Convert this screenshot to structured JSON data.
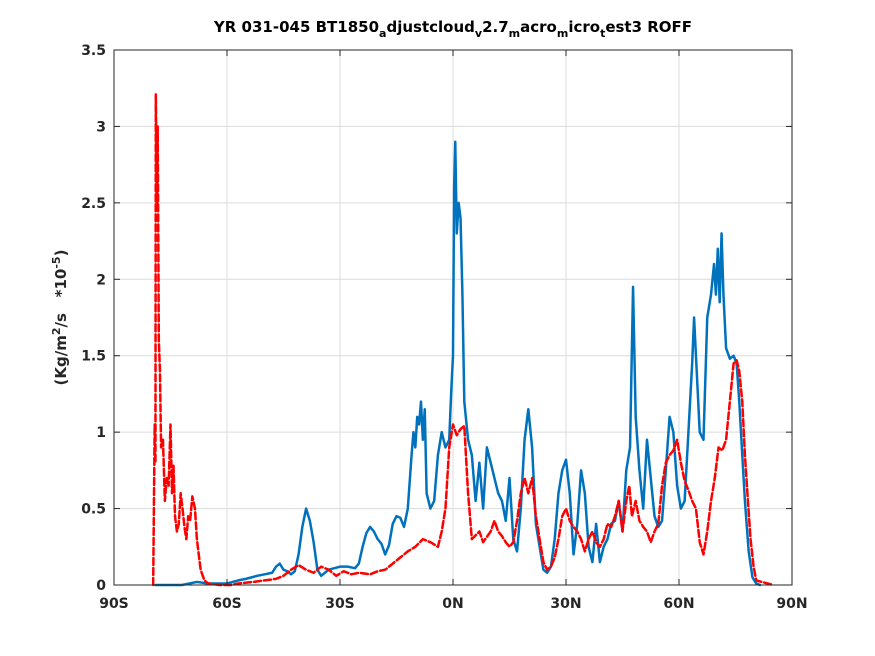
{
  "chart_data": {
    "type": "line",
    "title": {
      "segments": [
        {
          "text": "YR 031-045 BT1850",
          "sub": false
        },
        {
          "text": "a",
          "sub": true
        },
        {
          "text": "djustcloud",
          "sub": false
        },
        {
          "text": "v",
          "sub": true
        },
        {
          "text": "2.7",
          "sub": false
        },
        {
          "text": "m",
          "sub": true
        },
        {
          "text": "acro",
          "sub": false
        },
        {
          "text": "m",
          "sub": true
        },
        {
          "text": "icro",
          "sub": false
        },
        {
          "text": "t",
          "sub": true
        },
        {
          "text": "est3 ROFF",
          "sub": false
        }
      ]
    },
    "ylabel": {
      "segments": [
        {
          "text": "(Kg/m",
          "sup": false
        },
        {
          "text": "2",
          "sup": true
        },
        {
          "text": "/s   *10",
          "sup": false
        },
        {
          "text": "-5",
          "sup": true
        },
        {
          "text": ")",
          "sup": false
        }
      ]
    },
    "xlim": [
      -90,
      90
    ],
    "ylim": [
      0,
      3.5
    ],
    "xticks": [
      -90,
      -60,
      -30,
      0,
      30,
      60,
      90
    ],
    "xtick_labels": [
      "90S",
      "60S",
      "30S",
      "0N",
      "30N",
      "60N",
      "90N"
    ],
    "yticks": [
      0,
      0.5,
      1,
      1.5,
      2,
      2.5,
      3,
      3.5
    ],
    "ytick_labels": [
      "0",
      "0.5",
      "1",
      "1.5",
      "2",
      "2.5",
      "3",
      "3.5"
    ],
    "grid": true,
    "series": [
      {
        "color": "#0072BD",
        "style": "solid",
        "points": [
          [
            -79,
            0
          ],
          [
            -77,
            0
          ],
          [
            -75,
            0
          ],
          [
            -72,
            0
          ],
          [
            -70,
            0.01
          ],
          [
            -68,
            0.02
          ],
          [
            -65,
            0.01
          ],
          [
            -63,
            0.01
          ],
          [
            -60,
            0.01
          ],
          [
            -57,
            0.03
          ],
          [
            -55,
            0.04
          ],
          [
            -52,
            0.06
          ],
          [
            -50,
            0.07
          ],
          [
            -48,
            0.08
          ],
          [
            -47,
            0.12
          ],
          [
            -46,
            0.14
          ],
          [
            -45,
            0.1
          ],
          [
            -44,
            0.09
          ],
          [
            -43,
            0.07
          ],
          [
            -42,
            0.09
          ],
          [
            -41,
            0.2
          ],
          [
            -40,
            0.38
          ],
          [
            -39,
            0.5
          ],
          [
            -38,
            0.42
          ],
          [
            -37,
            0.28
          ],
          [
            -36,
            0.1
          ],
          [
            -35,
            0.06
          ],
          [
            -33,
            0.1
          ],
          [
            -30,
            0.12
          ],
          [
            -28,
            0.12
          ],
          [
            -26,
            0.11
          ],
          [
            -25,
            0.14
          ],
          [
            -24,
            0.25
          ],
          [
            -23,
            0.34
          ],
          [
            -22,
            0.38
          ],
          [
            -21,
            0.35
          ],
          [
            -20,
            0.3
          ],
          [
            -19,
            0.27
          ],
          [
            -18,
            0.2
          ],
          [
            -17,
            0.26
          ],
          [
            -16,
            0.4
          ],
          [
            -15,
            0.45
          ],
          [
            -14,
            0.44
          ],
          [
            -13,
            0.38
          ],
          [
            -12,
            0.5
          ],
          [
            -11,
            0.85
          ],
          [
            -10.5,
            1.0
          ],
          [
            -10,
            0.9
          ],
          [
            -9.5,
            1.1
          ],
          [
            -9,
            1.05
          ],
          [
            -8.5,
            1.2
          ],
          [
            -8,
            0.95
          ],
          [
            -7.5,
            1.15
          ],
          [
            -7,
            0.6
          ],
          [
            -6,
            0.5
          ],
          [
            -5,
            0.55
          ],
          [
            -4,
            0.85
          ],
          [
            -3,
            1.0
          ],
          [
            -2,
            0.9
          ],
          [
            -1,
            0.95
          ],
          [
            -0.5,
            1.25
          ],
          [
            0,
            1.5
          ],
          [
            0.3,
            2.6
          ],
          [
            0.6,
            2.9
          ],
          [
            1,
            2.3
          ],
          [
            1.5,
            2.5
          ],
          [
            2,
            2.4
          ],
          [
            2.5,
            1.9
          ],
          [
            3,
            1.2
          ],
          [
            4,
            0.95
          ],
          [
            5,
            0.85
          ],
          [
            6,
            0.55
          ],
          [
            7,
            0.8
          ],
          [
            8,
            0.5
          ],
          [
            9,
            0.9
          ],
          [
            10,
            0.8
          ],
          [
            11,
            0.7
          ],
          [
            12,
            0.6
          ],
          [
            13,
            0.55
          ],
          [
            14,
            0.42
          ],
          [
            15,
            0.7
          ],
          [
            16,
            0.3
          ],
          [
            17,
            0.22
          ],
          [
            18,
            0.5
          ],
          [
            19,
            0.95
          ],
          [
            20,
            1.15
          ],
          [
            21,
            0.9
          ],
          [
            22,
            0.4
          ],
          [
            23,
            0.25
          ],
          [
            24,
            0.1
          ],
          [
            25,
            0.08
          ],
          [
            26,
            0.12
          ],
          [
            27,
            0.3
          ],
          [
            28,
            0.6
          ],
          [
            29,
            0.75
          ],
          [
            30,
            0.82
          ],
          [
            31,
            0.6
          ],
          [
            32,
            0.2
          ],
          [
            33,
            0.4
          ],
          [
            34,
            0.75
          ],
          [
            35,
            0.6
          ],
          [
            36,
            0.25
          ],
          [
            37,
            0.15
          ],
          [
            38,
            0.4
          ],
          [
            39,
            0.15
          ],
          [
            40,
            0.25
          ],
          [
            41,
            0.3
          ],
          [
            42,
            0.4
          ],
          [
            43,
            0.42
          ],
          [
            44,
            0.55
          ],
          [
            45,
            0.35
          ],
          [
            46,
            0.75
          ],
          [
            47,
            0.9
          ],
          [
            47.8,
            1.95
          ],
          [
            48.5,
            1.1
          ],
          [
            49.5,
            0.75
          ],
          [
            50.5,
            0.5
          ],
          [
            51.5,
            0.95
          ],
          [
            52.5,
            0.7
          ],
          [
            53.5,
            0.45
          ],
          [
            54.5,
            0.38
          ],
          [
            55.5,
            0.42
          ],
          [
            56.5,
            0.75
          ],
          [
            57.5,
            1.1
          ],
          [
            58.5,
            1.0
          ],
          [
            59.5,
            0.65
          ],
          [
            60.5,
            0.5
          ],
          [
            61.5,
            0.55
          ],
          [
            62.5,
            1.0
          ],
          [
            63.5,
            1.45
          ],
          [
            64,
            1.75
          ],
          [
            64.5,
            1.5
          ],
          [
            65.5,
            1.0
          ],
          [
            66.5,
            0.95
          ],
          [
            67.5,
            1.75
          ],
          [
            68.5,
            1.9
          ],
          [
            69.3,
            2.1
          ],
          [
            69.8,
            1.9
          ],
          [
            70.3,
            2.2
          ],
          [
            70.8,
            1.85
          ],
          [
            71.3,
            2.3
          ],
          [
            71.8,
            1.9
          ],
          [
            72.5,
            1.55
          ],
          [
            73.5,
            1.48
          ],
          [
            74.5,
            1.5
          ],
          [
            75.3,
            1.45
          ],
          [
            76,
            1.2
          ],
          [
            76.8,
            0.85
          ],
          [
            77.5,
            0.55
          ],
          [
            78.5,
            0.22
          ],
          [
            79.5,
            0.05
          ],
          [
            80.5,
            0.01
          ],
          [
            81.5,
            0
          ]
        ]
      },
      {
        "color": "#FF0000",
        "style": "dashed",
        "points": [
          [
            -79.6,
            0
          ],
          [
            -79.2,
            1.05
          ],
          [
            -79,
            0.8
          ],
          [
            -78.9,
            3.21
          ],
          [
            -78.6,
            2.5
          ],
          [
            -78.4,
            3.0
          ],
          [
            -78.1,
            1.6
          ],
          [
            -77.8,
            1.4
          ],
          [
            -77.5,
            0.9
          ],
          [
            -77,
            0.95
          ],
          [
            -76.5,
            0.55
          ],
          [
            -76,
            0.7
          ],
          [
            -75.5,
            0.65
          ],
          [
            -75,
            1.05
          ],
          [
            -74.6,
            0.6
          ],
          [
            -74.2,
            0.78
          ],
          [
            -73.8,
            0.45
          ],
          [
            -73.3,
            0.35
          ],
          [
            -72.8,
            0.4
          ],
          [
            -72.3,
            0.6
          ],
          [
            -71.8,
            0.5
          ],
          [
            -71.3,
            0.38
          ],
          [
            -70.8,
            0.3
          ],
          [
            -70.3,
            0.45
          ],
          [
            -69.8,
            0.42
          ],
          [
            -69.2,
            0.58
          ],
          [
            -68.5,
            0.5
          ],
          [
            -68,
            0.3
          ],
          [
            -67.5,
            0.2
          ],
          [
            -67,
            0.1
          ],
          [
            -66,
            0.03
          ],
          [
            -65,
            0.01
          ],
          [
            -62,
            0
          ],
          [
            -59,
            0
          ],
          [
            -57,
            0.01
          ],
          [
            -53,
            0.02
          ],
          [
            -50,
            0.03
          ],
          [
            -47,
            0.04
          ],
          [
            -45,
            0.06
          ],
          [
            -43,
            0.1
          ],
          [
            -41,
            0.13
          ],
          [
            -39,
            0.1
          ],
          [
            -37,
            0.08
          ],
          [
            -35,
            0.12
          ],
          [
            -33,
            0.1
          ],
          [
            -31,
            0.06
          ],
          [
            -29,
            0.09
          ],
          [
            -27,
            0.07
          ],
          [
            -25,
            0.08
          ],
          [
            -22,
            0.07
          ],
          [
            -20,
            0.09
          ],
          [
            -18,
            0.1
          ],
          [
            -16,
            0.14
          ],
          [
            -14,
            0.18
          ],
          [
            -12,
            0.22
          ],
          [
            -10,
            0.25
          ],
          [
            -8,
            0.3
          ],
          [
            -6,
            0.28
          ],
          [
            -4,
            0.25
          ],
          [
            -3,
            0.35
          ],
          [
            -2,
            0.5
          ],
          [
            -1,
            0.9
          ],
          [
            0,
            1.05
          ],
          [
            1,
            0.98
          ],
          [
            2,
            1.02
          ],
          [
            3,
            1.04
          ],
          [
            4,
            0.6
          ],
          [
            5,
            0.3
          ],
          [
            7,
            0.35
          ],
          [
            8,
            0.28
          ],
          [
            10,
            0.35
          ],
          [
            11,
            0.42
          ],
          [
            12,
            0.35
          ],
          [
            13,
            0.32
          ],
          [
            14,
            0.28
          ],
          [
            15,
            0.25
          ],
          [
            16,
            0.28
          ],
          [
            17,
            0.42
          ],
          [
            18,
            0.6
          ],
          [
            19,
            0.7
          ],
          [
            20,
            0.6
          ],
          [
            21,
            0.7
          ],
          [
            22,
            0.45
          ],
          [
            23,
            0.3
          ],
          [
            24,
            0.15
          ],
          [
            25,
            0.1
          ],
          [
            26,
            0.12
          ],
          [
            27,
            0.18
          ],
          [
            28,
            0.3
          ],
          [
            29,
            0.45
          ],
          [
            30,
            0.5
          ],
          [
            31,
            0.42
          ],
          [
            32,
            0.38
          ],
          [
            33,
            0.35
          ],
          [
            34,
            0.3
          ],
          [
            35,
            0.22
          ],
          [
            36,
            0.3
          ],
          [
            37,
            0.35
          ],
          [
            38,
            0.28
          ],
          [
            39,
            0.25
          ],
          [
            40,
            0.3
          ],
          [
            41,
            0.4
          ],
          [
            42,
            0.38
          ],
          [
            43,
            0.45
          ],
          [
            44,
            0.55
          ],
          [
            45,
            0.35
          ],
          [
            46,
            0.55
          ],
          [
            46.8,
            0.65
          ],
          [
            47.5,
            0.45
          ],
          [
            48.5,
            0.55
          ],
          [
            49.5,
            0.42
          ],
          [
            50.5,
            0.38
          ],
          [
            51.5,
            0.35
          ],
          [
            52.5,
            0.28
          ],
          [
            53.5,
            0.35
          ],
          [
            54.5,
            0.4
          ],
          [
            55.5,
            0.65
          ],
          [
            56.5,
            0.8
          ],
          [
            57.5,
            0.85
          ],
          [
            58.5,
            0.88
          ],
          [
            59.5,
            0.95
          ],
          [
            60.5,
            0.8
          ],
          [
            61.5,
            0.68
          ],
          [
            62.5,
            0.62
          ],
          [
            63.5,
            0.55
          ],
          [
            64.5,
            0.5
          ],
          [
            65.5,
            0.28
          ],
          [
            66.5,
            0.2
          ],
          [
            67.5,
            0.35
          ],
          [
            68.5,
            0.55
          ],
          [
            69.5,
            0.7
          ],
          [
            70.5,
            0.9
          ],
          [
            71.5,
            0.88
          ],
          [
            72.5,
            0.95
          ],
          [
            73.5,
            1.2
          ],
          [
            74.5,
            1.45
          ],
          [
            75.3,
            1.47
          ],
          [
            76,
            1.4
          ],
          [
            76.8,
            1.2
          ],
          [
            77.5,
            0.85
          ],
          [
            78.3,
            0.55
          ],
          [
            79,
            0.3
          ],
          [
            79.8,
            0.12
          ],
          [
            80.5,
            0.03
          ],
          [
            82,
            0.02
          ],
          [
            83.5,
            0.01
          ],
          [
            85,
            0
          ]
        ]
      }
    ]
  }
}
